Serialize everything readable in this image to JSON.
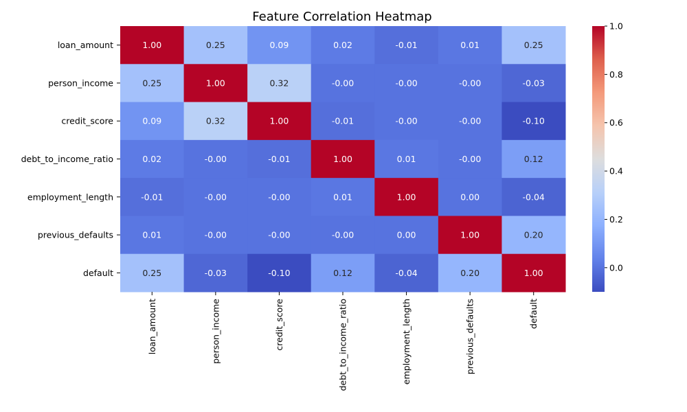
{
  "chart_data": {
    "type": "heatmap",
    "title": "Feature Correlation Heatmap",
    "labels": [
      "loan_amount",
      "person_income",
      "credit_score",
      "debt_to_income_ratio",
      "employment_length",
      "previous_defaults",
      "default"
    ],
    "matrix": [
      [
        1.0,
        0.25,
        0.09,
        0.02,
        -0.01,
        0.01,
        0.25
      ],
      [
        0.25,
        1.0,
        0.32,
        -0.0,
        -0.0,
        -0.0,
        -0.03
      ],
      [
        0.09,
        0.32,
        1.0,
        -0.01,
        -0.0,
        -0.0,
        -0.1
      ],
      [
        0.02,
        -0.0,
        -0.01,
        1.0,
        0.01,
        -0.0,
        0.12
      ],
      [
        -0.01,
        -0.0,
        -0.0,
        0.01,
        1.0,
        0.0,
        -0.04
      ],
      [
        0.01,
        -0.0,
        -0.0,
        -0.0,
        0.0,
        1.0,
        0.2
      ],
      [
        0.25,
        -0.03,
        -0.1,
        0.12,
        -0.04,
        0.2,
        1.0
      ]
    ],
    "value_labels": [
      [
        "1.00",
        "0.25",
        "0.09",
        "0.02",
        "-0.01",
        "0.01",
        "0.25"
      ],
      [
        "0.25",
        "1.00",
        "0.32",
        "-0.00",
        "-0.00",
        "-0.00",
        "-0.03"
      ],
      [
        "0.09",
        "0.32",
        "1.00",
        "-0.01",
        "-0.00",
        "-0.00",
        "-0.10"
      ],
      [
        "0.02",
        "-0.00",
        "-0.01",
        "1.00",
        "0.01",
        "-0.00",
        "0.12"
      ],
      [
        "-0.01",
        "-0.00",
        "-0.00",
        "0.01",
        "1.00",
        "0.00",
        "-0.04"
      ],
      [
        "0.01",
        "-0.00",
        "-0.00",
        "-0.00",
        "0.00",
        "1.00",
        "0.20"
      ],
      [
        "0.25",
        "-0.03",
        "-0.10",
        "0.12",
        "-0.04",
        "0.20",
        "1.00"
      ]
    ],
    "colormap": "coolwarm",
    "color_range": [
      -0.1,
      1.0
    ],
    "colorbar_ticks": [
      0.0,
      0.2,
      0.4,
      0.6,
      0.8,
      1.0
    ],
    "colorbar_tick_labels": [
      "0.0",
      "0.2",
      "0.4",
      "0.6",
      "0.8",
      "1.0"
    ],
    "grid": false
  }
}
